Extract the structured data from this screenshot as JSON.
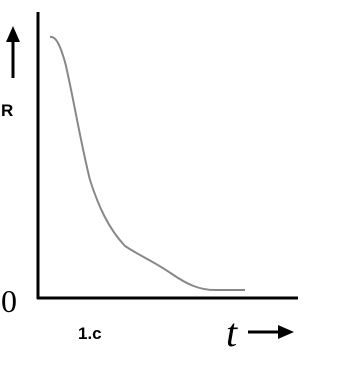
{
  "labels": {
    "y_axis": "R",
    "origin": "0",
    "caption": "1.c",
    "x_axis": "t"
  }
}
